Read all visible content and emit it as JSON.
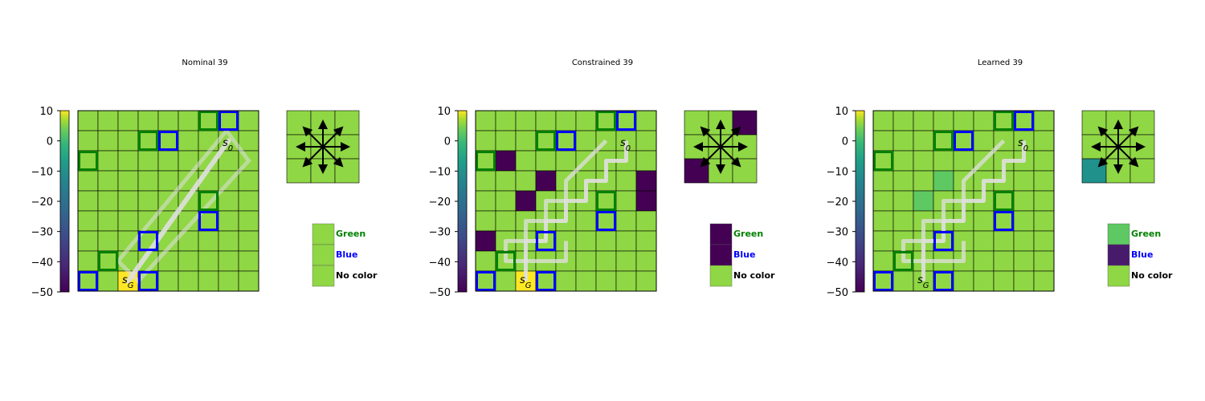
{
  "colors": {
    "green_outline": "#008000",
    "blue_outline": "#0000ff",
    "path": "#e0e0e0",
    "cell_default": "#8fd744",
    "colorbar_top": "#fde725",
    "colorbar_bottom": "#440154"
  },
  "icons": [
    "arrow-icon"
  ],
  "chart_data": [
    {
      "type": "heatmap",
      "title": "Nominal 39",
      "colorbar": {
        "ticks": [
          "10",
          "0",
          "−10",
          "−20",
          "−30",
          "−40",
          "−50"
        ],
        "range": [
          -50,
          10
        ]
      },
      "grid_size": [
        9,
        9
      ],
      "start_label": "s",
      "start_sub": "0",
      "goal_label": "s",
      "goal_sub": "G",
      "special_cells": [
        {
          "row": 8,
          "col": 2,
          "value": 10
        }
      ],
      "green_cells": [
        [
          0,
          6
        ],
        [
          1,
          3
        ],
        [
          2,
          0
        ],
        [
          7,
          1
        ],
        [
          4,
          6
        ]
      ],
      "blue_cells": [
        [
          0,
          7
        ],
        [
          1,
          4
        ],
        [
          6,
          3
        ],
        [
          8,
          0
        ],
        [
          8,
          3
        ],
        [
          5,
          6
        ]
      ],
      "path": "diagonal",
      "action_grid": [
        [
          "#8fd744",
          "#8fd744",
          "#8fd744"
        ],
        [
          "#8fd744",
          "#8fd744",
          "#8fd744"
        ],
        [
          "#8fd744",
          "#8fd744",
          "#8fd744"
        ]
      ],
      "legend": [
        {
          "label": "Green",
          "text_color": "#008000",
          "swatch": "#8fd744"
        },
        {
          "label": "Blue",
          "text_color": "#0000ff",
          "swatch": "#8fd744"
        },
        {
          "label": "No color",
          "text_color": "#000000",
          "swatch": "#8fd744"
        }
      ]
    },
    {
      "type": "heatmap",
      "title": "Constrained 39",
      "colorbar": {
        "ticks": [
          "10",
          "0",
          "−10",
          "−20",
          "−30",
          "−40",
          "−50"
        ],
        "range": [
          -50,
          10
        ]
      },
      "grid_size": [
        9,
        9
      ],
      "start_label": "s",
      "start_sub": "0",
      "goal_label": "s",
      "goal_sub": "G",
      "special_cells": [
        {
          "row": 8,
          "col": 2,
          "value": 10
        },
        {
          "row": 2,
          "col": 1,
          "value": -50
        },
        {
          "row": 3,
          "col": 3,
          "value": -50
        },
        {
          "row": 4,
          "col": 2,
          "value": -50
        },
        {
          "row": 6,
          "col": 0,
          "value": -50
        },
        {
          "row": 3,
          "col": 8,
          "value": -50
        },
        {
          "row": 4,
          "col": 8,
          "value": -50
        }
      ],
      "green_cells": [
        [
          0,
          6
        ],
        [
          1,
          3
        ],
        [
          2,
          0
        ],
        [
          7,
          1
        ],
        [
          4,
          6
        ]
      ],
      "blue_cells": [
        [
          0,
          7
        ],
        [
          1,
          4
        ],
        [
          6,
          3
        ],
        [
          8,
          0
        ],
        [
          8,
          3
        ],
        [
          5,
          6
        ]
      ],
      "path": "staircase",
      "action_grid": [
        [
          "#8fd744",
          "#8fd744",
          "#440154"
        ],
        [
          "#8fd744",
          "#8fd744",
          "#8fd744"
        ],
        [
          "#440154",
          "#8fd744",
          "#8fd744"
        ]
      ],
      "legend": [
        {
          "label": "Green",
          "text_color": "#008000",
          "swatch": "#440154"
        },
        {
          "label": "Blue",
          "text_color": "#0000ff",
          "swatch": "#440154"
        },
        {
          "label": "No color",
          "text_color": "#000000",
          "swatch": "#8fd744"
        }
      ]
    },
    {
      "type": "heatmap",
      "title": "Learned 39",
      "colorbar": {
        "ticks": [
          "10",
          "0",
          "−10",
          "−20",
          "−30",
          "−40",
          "−50"
        ],
        "range": [
          -50,
          10
        ]
      },
      "grid_size": [
        9,
        9
      ],
      "start_label": "s",
      "start_sub": "0",
      "goal_label": "s",
      "goal_sub": "G",
      "special_cells": [
        {
          "row": 3,
          "col": 3,
          "value": -5
        },
        {
          "row": 4,
          "col": 2,
          "value": -5
        }
      ],
      "green_cells": [
        [
          0,
          6
        ],
        [
          1,
          3
        ],
        [
          2,
          0
        ],
        [
          7,
          1
        ],
        [
          4,
          6
        ]
      ],
      "blue_cells": [
        [
          0,
          7
        ],
        [
          1,
          4
        ],
        [
          6,
          3
        ],
        [
          8,
          0
        ],
        [
          8,
          3
        ],
        [
          5,
          6
        ]
      ],
      "path": "staircase",
      "action_grid": [
        [
          "#8fd744",
          "#8fd744",
          "#8fd744"
        ],
        [
          "#8fd744",
          "#8fd744",
          "#8fd744"
        ],
        [
          "#21918c",
          "#8fd744",
          "#8fd744"
        ]
      ],
      "legend": [
        {
          "label": "Green",
          "text_color": "#008000",
          "swatch": "#5ec962"
        },
        {
          "label": "Blue",
          "text_color": "#0000ff",
          "swatch": "#481a6c"
        },
        {
          "label": "No color",
          "text_color": "#000000",
          "swatch": "#8fd744"
        }
      ]
    }
  ]
}
